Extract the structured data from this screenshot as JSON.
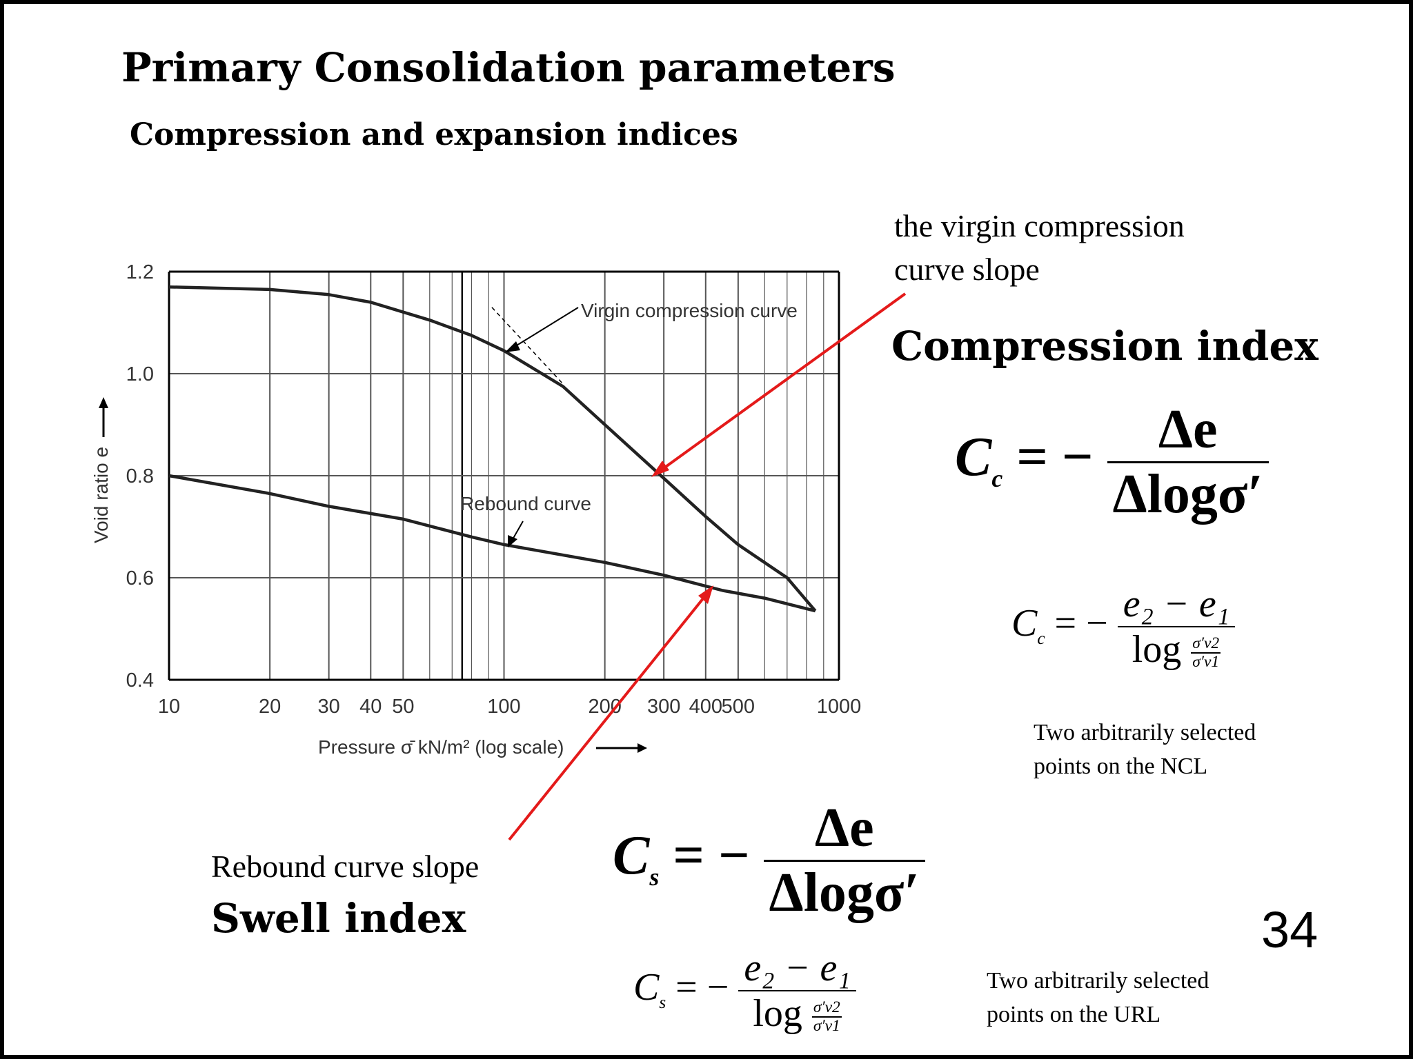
{
  "slide": {
    "title": "Primary Consolidation parameters",
    "subtitle": "Compression and expansion indices",
    "page_number": "34"
  },
  "compression": {
    "description_line1": "the virgin compression",
    "description_line2": "curve slope",
    "title": "Compression index",
    "symbol": "C",
    "subscript": "c",
    "formula_numerator": "Δe",
    "formula_denominator": "Δlogσ′",
    "formula2_numerator": "e₂ − e₁",
    "formula2_log": "log",
    "formula2_ratio_num": "σ′v2",
    "formula2_ratio_den": "σ′v1",
    "note_line1": "Two arbitrarily selected",
    "note_line2": "points on the NCL"
  },
  "swell": {
    "description": "Rebound curve slope",
    "title": "Swell index",
    "symbol": "C",
    "subscript": "s",
    "formula_numerator": "Δe",
    "formula_denominator": "Δlogσ′",
    "formula2_numerator": "e₂ − e₁",
    "formula2_log": "log",
    "formula2_ratio_num": "σ′v2",
    "formula2_ratio_den": "σ′v1",
    "note_line1": "Two arbitrarily selected",
    "note_line2": "points on the URL"
  },
  "operators": {
    "equals_minus": "= −"
  },
  "chart_data": {
    "type": "line",
    "xscale": "log",
    "xlim": [
      10,
      1000
    ],
    "ylim": [
      0.4,
      1.2
    ],
    "x_ticks": [
      "10",
      "20",
      "30",
      "40",
      "50",
      "100",
      "200",
      "300",
      "400",
      "500",
      "1000"
    ],
    "y_ticks": [
      "1.2",
      "1.0",
      "0.8",
      "0.6",
      "0.4"
    ],
    "xlabel": "Pressure σ̄ kN/m² (log scale)",
    "ylabel": "Void ratio e",
    "grid": true,
    "series": [
      {
        "name": "Virgin compression curve",
        "points": [
          [
            10,
            1.17
          ],
          [
            20,
            1.165
          ],
          [
            30,
            1.155
          ],
          [
            40,
            1.14
          ],
          [
            60,
            1.105
          ],
          [
            80,
            1.075
          ],
          [
            100,
            1.045
          ],
          [
            150,
            0.975
          ],
          [
            200,
            0.9
          ],
          [
            300,
            0.795
          ],
          [
            400,
            0.72
          ],
          [
            500,
            0.665
          ],
          [
            700,
            0.6
          ],
          [
            850,
            0.535
          ]
        ]
      },
      {
        "name": "Rebound curve",
        "points": [
          [
            10,
            0.8
          ],
          [
            20,
            0.765
          ],
          [
            30,
            0.74
          ],
          [
            50,
            0.715
          ],
          [
            80,
            0.68
          ],
          [
            100,
            0.665
          ],
          [
            200,
            0.63
          ],
          [
            300,
            0.605
          ],
          [
            450,
            0.575
          ],
          [
            600,
            0.56
          ],
          [
            850,
            0.535
          ]
        ]
      }
    ],
    "annotations": [
      {
        "text": "Virgin compression curve"
      },
      {
        "text": "Rebound curve"
      }
    ],
    "colors": {
      "curve": "#222222",
      "grid": "#555555",
      "arrow": "#e41a1a"
    }
  }
}
